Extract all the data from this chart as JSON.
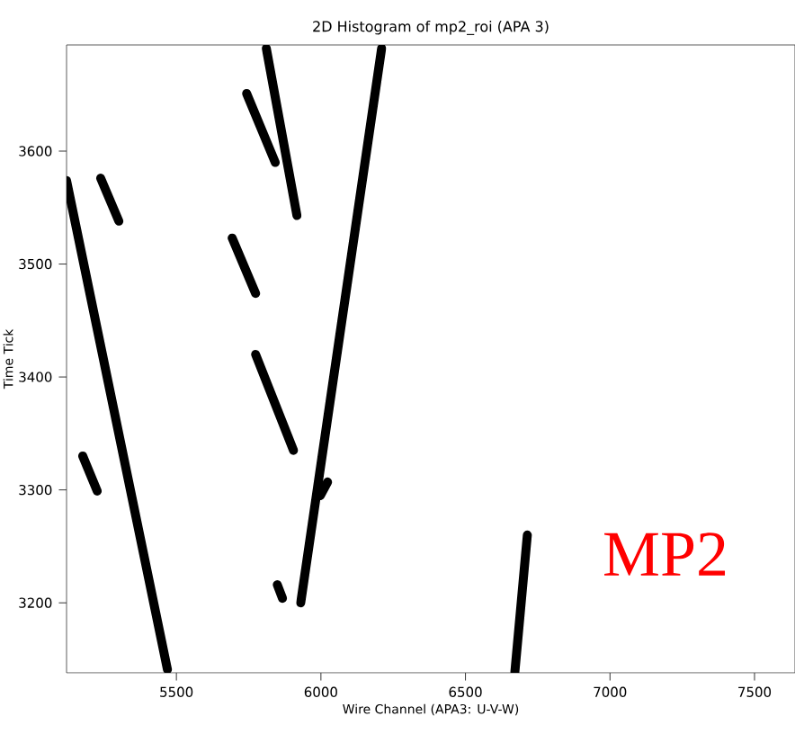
{
  "chart_data": {
    "type": "line",
    "title": "2D Histogram of mp2_roi (APA 3)",
    "xlabel": "Wire Channel (APA3: U-V-W)",
    "ylabel": "Time Tick",
    "xlim": [
      5120,
      7640
    ],
    "ylim": [
      3138,
      3694
    ],
    "xticks": [
      5500,
      6000,
      6500,
      7000,
      7500
    ],
    "yticks": [
      3200,
      3300,
      3400,
      3500,
      3600
    ],
    "grid": false,
    "marker": "none",
    "line_style": "solid",
    "annotations": [
      "MP2"
    ],
    "series": [
      {
        "color": "#000000",
        "x": [
          5120,
          5469
        ],
        "values": [
          3574,
          3141
        ]
      },
      {
        "color": "#000000",
        "x": [
          5811,
          5917
        ],
        "values": [
          3691,
          3543
        ]
      },
      {
        "color": "#000000",
        "x": [
          5930,
          6210
        ],
        "values": [
          3200,
          3691
        ]
      },
      {
        "color": "#000000",
        "x": [
          5743,
          5842
        ],
        "values": [
          3651,
          3590
        ]
      },
      {
        "color": "#000000",
        "x": [
          5238,
          5301
        ],
        "values": [
          3576,
          3538
        ]
      },
      {
        "color": "#000000",
        "x": [
          5693,
          5774
        ],
        "values": [
          3523,
          3474
        ]
      },
      {
        "color": "#000000",
        "x": [
          5774,
          5905
        ],
        "values": [
          3420,
          3335
        ]
      },
      {
        "color": "#000000",
        "x": [
          5176,
          5226
        ],
        "values": [
          3330,
          3299
        ]
      },
      {
        "color": "#000000",
        "x": [
          5849,
          5867
        ],
        "values": [
          3216,
          3204
        ]
      },
      {
        "color": "#000000",
        "x": [
          5998,
          6023
        ],
        "values": [
          3295,
          3307
        ]
      },
      {
        "color": "#000000",
        "x": [
          6671,
          6714
        ],
        "values": [
          3139,
          3260
        ]
      }
    ]
  }
}
